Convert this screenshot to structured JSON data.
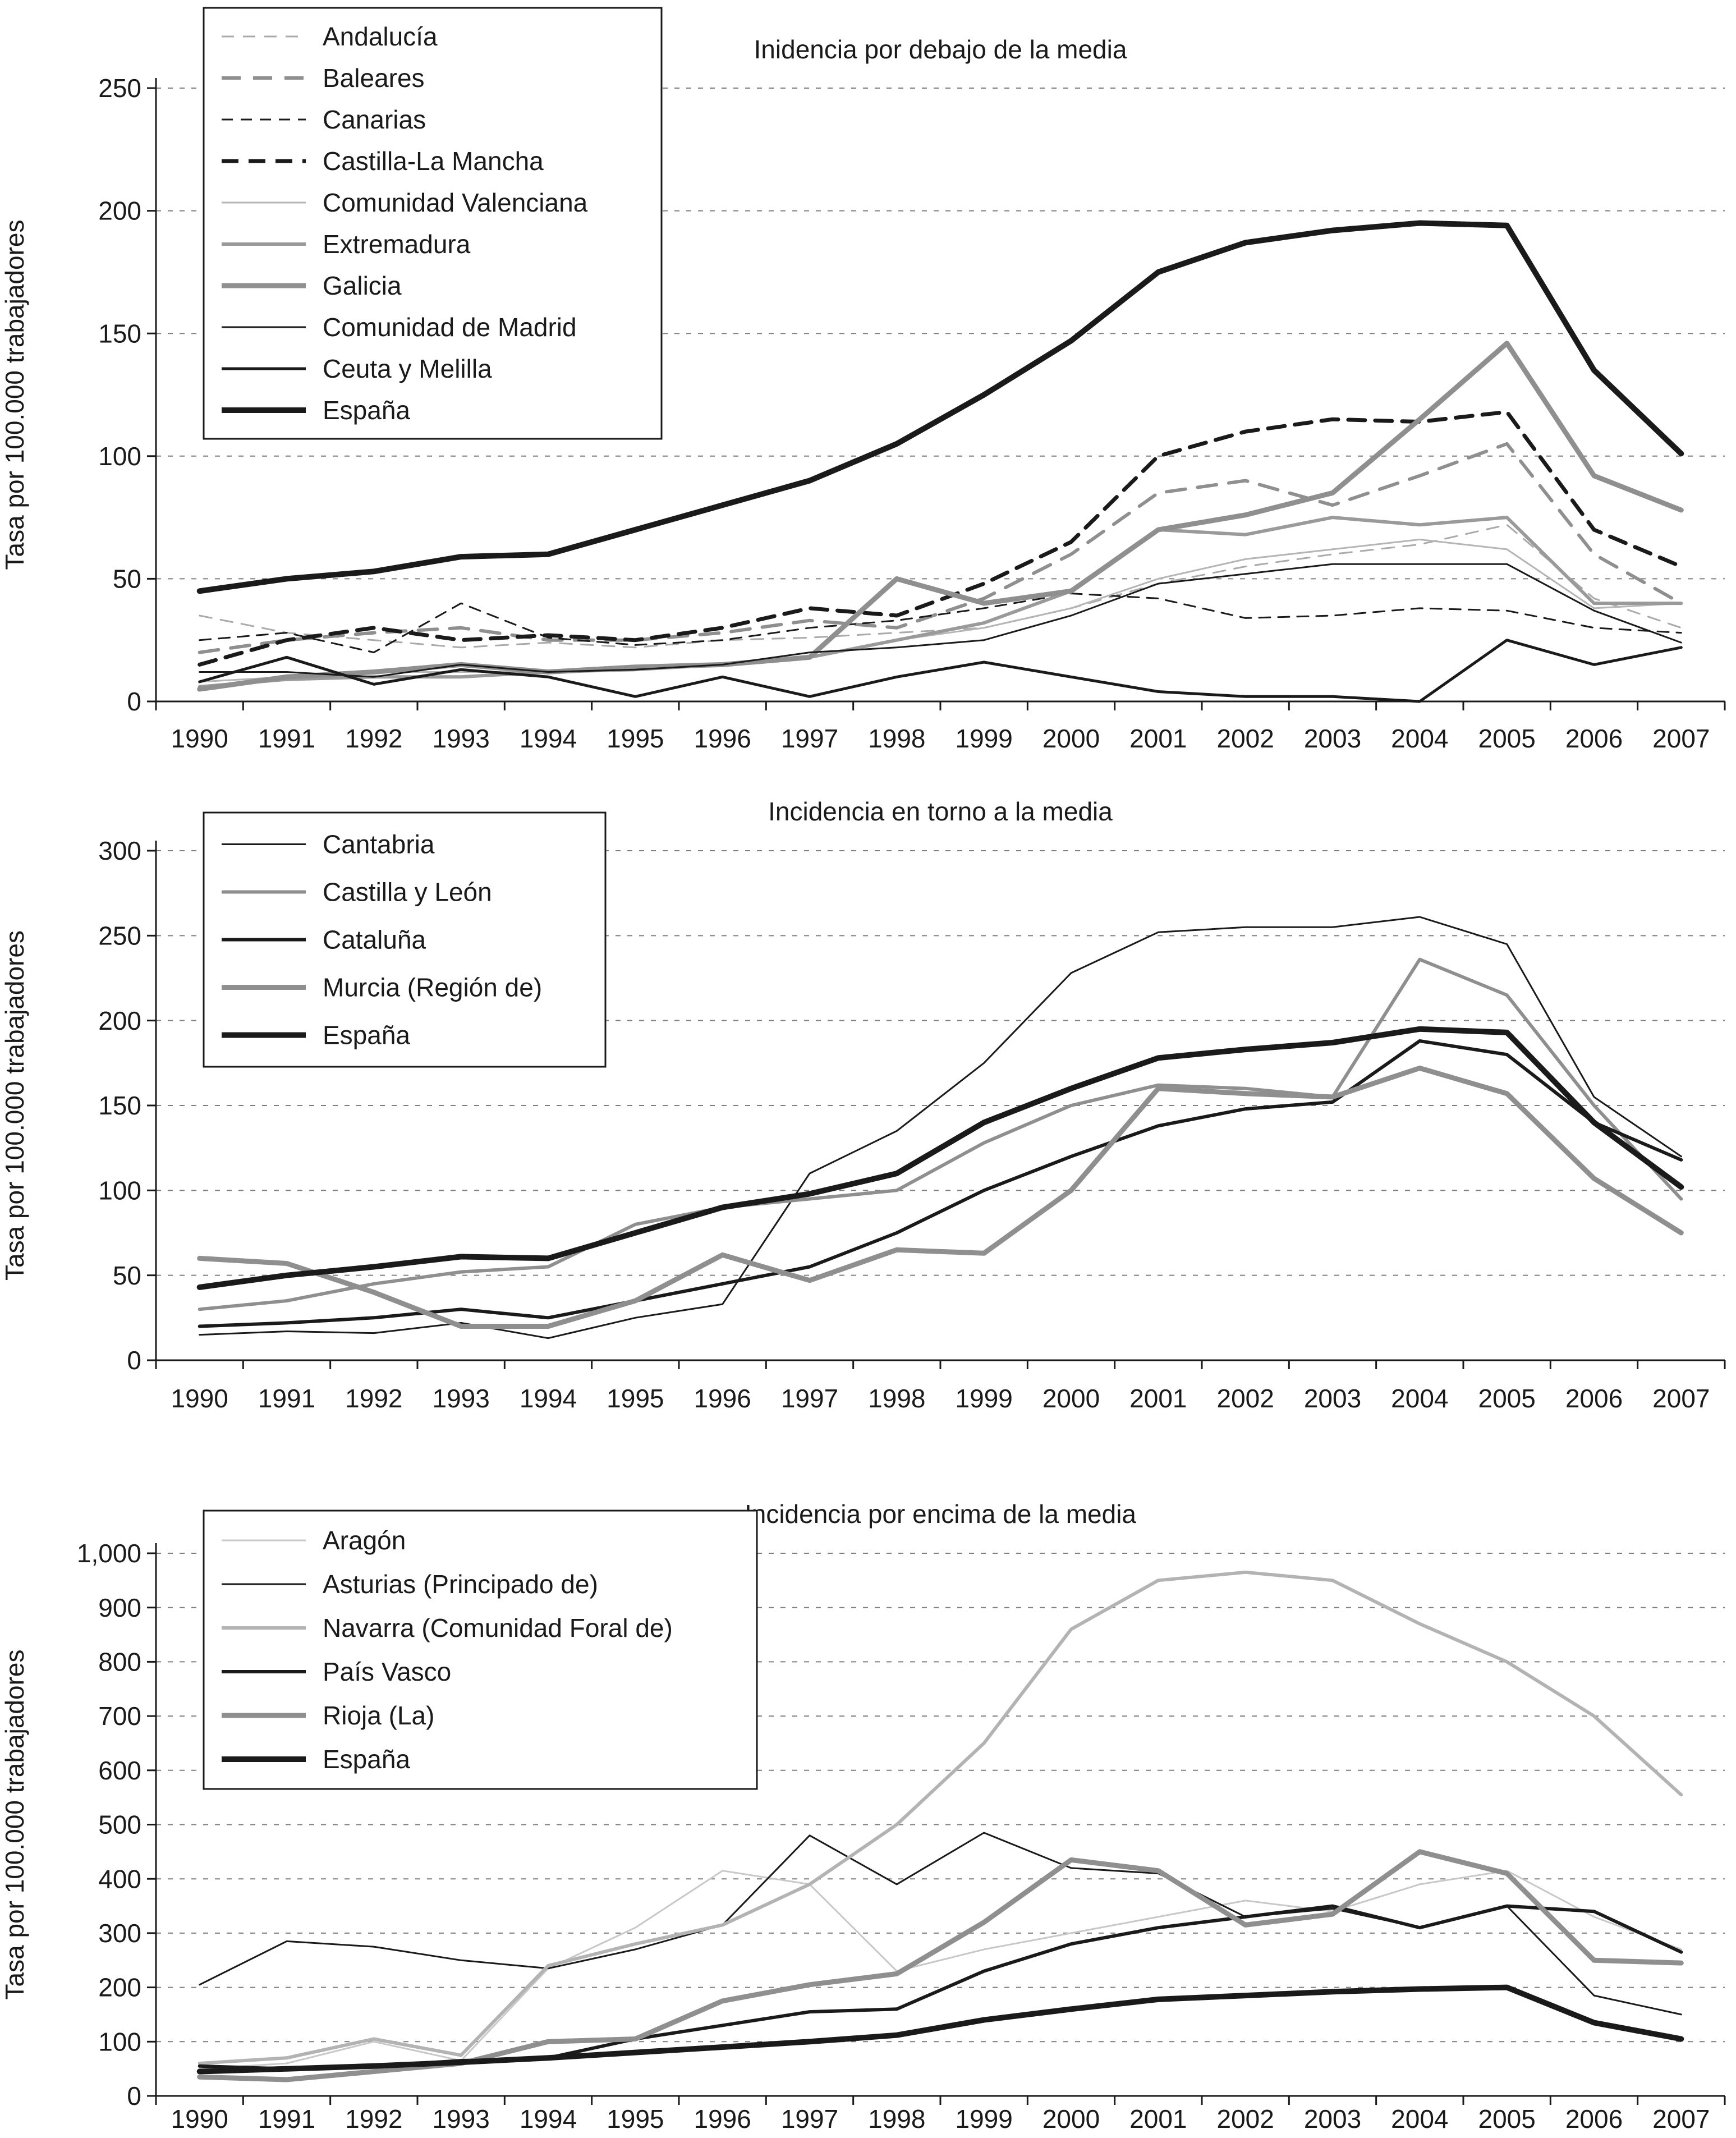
{
  "figure": {
    "background": "#ffffff",
    "text_color": "#1a1a1a",
    "grid_color": "#7f7f7f"
  },
  "chart_data": [
    {
      "type": "line",
      "title": "Inidencia por debajo de la media",
      "ylabel": "Tasa por 100.000 trabajadores",
      "xlabel": "",
      "x": [
        1990,
        1991,
        1992,
        1993,
        1994,
        1995,
        1996,
        1997,
        1998,
        1999,
        2000,
        2001,
        2002,
        2003,
        2004,
        2005,
        2006,
        2007
      ],
      "ylim": [
        0,
        250
      ],
      "ytick_step": 50,
      "ytick_labels": [
        "0",
        "50",
        "100",
        "150",
        "200",
        "250"
      ],
      "grid": "dashed-horizontal",
      "legend_position": "top-left-boxed",
      "series": [
        {
          "name": "Andalucía",
          "color": "#aaaaaa",
          "width": 3,
          "dash": "22 16",
          "values": [
            35,
            28,
            25,
            22,
            24,
            22,
            25,
            26,
            28,
            30,
            38,
            48,
            55,
            60,
            64,
            72,
            42,
            30
          ]
        },
        {
          "name": "Baleares",
          "color": "#8f8f8f",
          "width": 6,
          "dash": "34 22",
          "values": [
            20,
            25,
            28,
            30,
            25,
            25,
            28,
            33,
            30,
            42,
            60,
            85,
            90,
            80,
            92,
            105,
            60,
            40
          ]
        },
        {
          "name": "Canarias",
          "color": "#1a1a1a",
          "width": 3,
          "dash": "20 14",
          "values": [
            25,
            28,
            20,
            40,
            26,
            23,
            25,
            30,
            33,
            38,
            44,
            42,
            34,
            35,
            38,
            37,
            30,
            28
          ]
        },
        {
          "name": "Castilla-La Mancha",
          "color": "#1a1a1a",
          "width": 7,
          "dash": "30 18",
          "values": [
            15,
            25,
            30,
            25,
            27,
            25,
            30,
            38,
            35,
            48,
            65,
            100,
            110,
            115,
            114,
            118,
            70,
            55
          ]
        },
        {
          "name": "Comunidad Valenciana",
          "color": "#b5b5b5",
          "width": 3,
          "dash": null,
          "values": [
            8,
            10,
            12,
            12,
            12,
            13,
            15,
            18,
            25,
            30,
            38,
            50,
            58,
            62,
            66,
            62,
            38,
            40
          ]
        },
        {
          "name": "Extremadura",
          "color": "#9a9a9a",
          "width": 6,
          "dash": null,
          "values": [
            6,
            9,
            10,
            10,
            12,
            13,
            15,
            18,
            25,
            32,
            45,
            70,
            68,
            75,
            72,
            75,
            40,
            40
          ]
        },
        {
          "name": "Galicia",
          "color": "#8f8f8f",
          "width": 9,
          "dash": null,
          "values": [
            5,
            10,
            12,
            15,
            12,
            14,
            15,
            18,
            50,
            40,
            45,
            70,
            76,
            85,
            115,
            146,
            92,
            78
          ]
        },
        {
          "name": "Comunidad de Madrid",
          "color": "#1a1a1a",
          "width": 3,
          "dash": null,
          "values": [
            12,
            12,
            10,
            15,
            12,
            13,
            15,
            20,
            22,
            25,
            35,
            48,
            52,
            56,
            56,
            56,
            37,
            24
          ]
        },
        {
          "name": "Ceuta y Melilla",
          "color": "#1a1a1a",
          "width": 5,
          "dash": null,
          "values": [
            8,
            18,
            7,
            13,
            10,
            2,
            10,
            2,
            10,
            16,
            10,
            4,
            2,
            2,
            0,
            25,
            15,
            22
          ]
        },
        {
          "name": "España",
          "color": "#1a1a1a",
          "width": 10,
          "dash": null,
          "values": [
            45,
            50,
            53,
            59,
            60,
            70,
            80,
            90,
            105,
            125,
            147,
            175,
            187,
            192,
            195,
            194,
            135,
            101
          ]
        }
      ]
    },
    {
      "type": "line",
      "title": "Incidencia en torno a la media",
      "ylabel": "Tasa por 100.000 trabajadores",
      "xlabel": "",
      "x": [
        1990,
        1991,
        1992,
        1993,
        1994,
        1995,
        1996,
        1997,
        1998,
        1999,
        2000,
        2001,
        2002,
        2003,
        2004,
        2005,
        2006,
        2007
      ],
      "ylim": [
        0,
        300
      ],
      "ytick_step": 50,
      "ytick_labels": [
        "0",
        "50",
        "100",
        "150",
        "200",
        "250",
        "300"
      ],
      "grid": "dashed-horizontal",
      "legend_position": "top-left-boxed",
      "series": [
        {
          "name": "Cantabria",
          "color": "#1a1a1a",
          "width": 3,
          "dash": null,
          "values": [
            15,
            17,
            16,
            22,
            13,
            25,
            33,
            110,
            135,
            175,
            228,
            252,
            255,
            255,
            261,
            245,
            155,
            120
          ]
        },
        {
          "name": "Castilla y León",
          "color": "#8f8f8f",
          "width": 6,
          "dash": null,
          "values": [
            30,
            35,
            45,
            52,
            55,
            80,
            90,
            95,
            100,
            128,
            150,
            162,
            160,
            155,
            236,
            215,
            150,
            95
          ]
        },
        {
          "name": "Cataluña",
          "color": "#1a1a1a",
          "width": 6,
          "dash": null,
          "values": [
            20,
            22,
            25,
            30,
            25,
            35,
            45,
            55,
            75,
            100,
            120,
            138,
            148,
            152,
            188,
            180,
            140,
            118
          ]
        },
        {
          "name": "Murcia (Región de)",
          "color": "#8f8f8f",
          "width": 9,
          "dash": null,
          "values": [
            60,
            57,
            40,
            20,
            20,
            35,
            62,
            47,
            65,
            63,
            100,
            160,
            157,
            155,
            172,
            157,
            107,
            75
          ]
        },
        {
          "name": "España",
          "color": "#1a1a1a",
          "width": 10,
          "dash": null,
          "values": [
            43,
            50,
            55,
            61,
            60,
            75,
            90,
            98,
            110,
            140,
            160,
            178,
            183,
            187,
            195,
            193,
            140,
            102
          ]
        }
      ]
    },
    {
      "type": "line",
      "title": "Incidencia por encima de la media",
      "ylabel": "Tasa por 100.000 trabajadores",
      "xlabel": "",
      "x": [
        1990,
        1991,
        1992,
        1993,
        1994,
        1995,
        1996,
        1997,
        1998,
        1999,
        2000,
        2001,
        2002,
        2003,
        2004,
        2005,
        2006,
        2007
      ],
      "ylim": [
        0,
        1000
      ],
      "ytick_step": 100,
      "ytick_labels": [
        "0",
        "100",
        "200",
        "300",
        "400",
        "500",
        "600",
        "700",
        "800",
        "900",
        "1,000"
      ],
      "grid": "dashed-horizontal",
      "legend_position": "top-left-boxed",
      "series": [
        {
          "name": "Aragón",
          "color": "#c8c8c8",
          "width": 3,
          "dash": null,
          "values": [
            50,
            60,
            100,
            65,
            235,
            310,
            415,
            390,
            230,
            270,
            300,
            330,
            360,
            340,
            390,
            415,
            330,
            270
          ]
        },
        {
          "name": "Asturias (Principado de)",
          "color": "#1a1a1a",
          "width": 3,
          "dash": null,
          "values": [
            205,
            285,
            275,
            250,
            235,
            270,
            315,
            480,
            390,
            485,
            420,
            410,
            330,
            345,
            310,
            350,
            185,
            150
          ]
        },
        {
          "name": "Navarra (Comunidad Foral de)",
          "color": "#b3b3b3",
          "width": 6,
          "dash": null,
          "values": [
            60,
            70,
            105,
            75,
            240,
            280,
            315,
            390,
            500,
            650,
            860,
            950,
            965,
            950,
            870,
            800,
            700,
            555
          ]
        },
        {
          "name": "País Vasco",
          "color": "#1a1a1a",
          "width": 6,
          "dash": null,
          "values": [
            55,
            50,
            55,
            65,
            70,
            105,
            130,
            155,
            160,
            230,
            280,
            310,
            330,
            350,
            310,
            350,
            340,
            265
          ]
        },
        {
          "name": "Rioja (La)",
          "color": "#8f8f8f",
          "width": 9,
          "dash": null,
          "values": [
            35,
            30,
            45,
            60,
            100,
            105,
            175,
            205,
            225,
            320,
            435,
            415,
            315,
            335,
            450,
            410,
            250,
            245
          ]
        },
        {
          "name": "España",
          "color": "#1a1a1a",
          "width": 10,
          "dash": null,
          "values": [
            45,
            50,
            55,
            62,
            70,
            80,
            90,
            100,
            112,
            140,
            160,
            178,
            185,
            192,
            197,
            200,
            135,
            105
          ]
        }
      ]
    }
  ]
}
